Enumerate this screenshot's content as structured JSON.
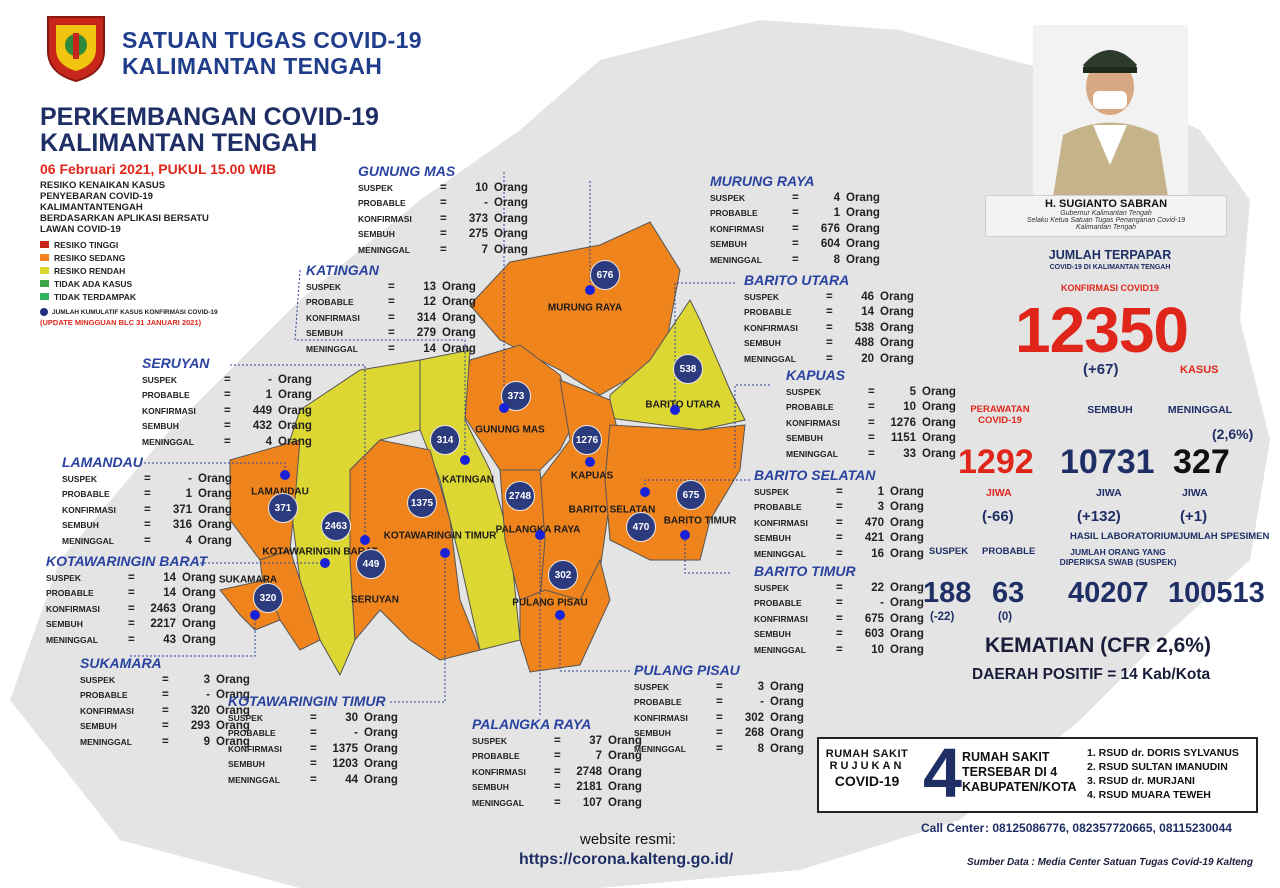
{
  "header": {
    "org_line1": "SATUAN TUGAS COVID-19",
    "org_line2": "KALIMANTAN TENGAH",
    "title_line1": "PERKEMBANGAN COVID-19",
    "title_line2": "KALIMANTAN TENGAH",
    "date": "06 Februari 2021, PUKUL 15.00 WIB"
  },
  "risk_legend": {
    "title": "RESIKO KENAIKAN KASUS PENYEBARAN COVID-19 KALIMANTANTENGAH BERDASARKAN APLIKASI BERSATU LAWAN COVID-19",
    "items": [
      {
        "label": "RESIKO TINGGI",
        "color": "#c8261b"
      },
      {
        "label": "RESIKO SEDANG",
        "color": "#f5821f"
      },
      {
        "label": "RESIKO RENDAH",
        "color": "#d8d62a"
      },
      {
        "label": "TIDAK ADA KASUS",
        "color": "#3aa646"
      },
      {
        "label": "TIDAK TERDAMPAK",
        "color": "#2fb35a"
      }
    ],
    "dot_label": "JUMLAH KUMULATIF KASUS KONFIRMASI COVID-19",
    "update_note": "(UPDATE MINGGUAN BLC 31 JANUARI 2021)"
  },
  "stat_labels": {
    "suspek": "SUSPEK",
    "probable": "PROBABLE",
    "konfirmasi": "KONFIRMASI",
    "sembuh": "SEMBUH",
    "meninggal": "MENINGGAL",
    "unit": "Orang",
    "eq": "="
  },
  "regions": [
    {
      "id": "gunung-mas",
      "name": "GUNUNG MAS",
      "suspek": "10",
      "probable": "-",
      "konfirmasi": "373",
      "sembuh": "275",
      "meninggal": "7"
    },
    {
      "id": "murung-raya",
      "name": "MURUNG RAYA",
      "suspek": "4",
      "probable": "1",
      "konfirmasi": "676",
      "sembuh": "604",
      "meninggal": "8"
    },
    {
      "id": "katingan",
      "name": "KATINGAN",
      "suspek": "13",
      "probable": "12",
      "konfirmasi": "314",
      "sembuh": "279",
      "meninggal": "14"
    },
    {
      "id": "barito-utara",
      "name": "BARITO UTARA",
      "suspek": "46",
      "probable": "14",
      "konfirmasi": "538",
      "sembuh": "488",
      "meninggal": "20"
    },
    {
      "id": "seruyan",
      "name": "SERUYAN",
      "suspek": "-",
      "probable": "1",
      "konfirmasi": "449",
      "sembuh": "432",
      "meninggal": "4"
    },
    {
      "id": "kapuas",
      "name": "KAPUAS",
      "suspek": "5",
      "probable": "10",
      "konfirmasi": "1276",
      "sembuh": "1151",
      "meninggal": "33"
    },
    {
      "id": "lamandau",
      "name": "LAMANDAU",
      "suspek": "-",
      "probable": "1",
      "konfirmasi": "371",
      "sembuh": "316",
      "meninggal": "4"
    },
    {
      "id": "barito-selatan",
      "name": "BARITO SELATAN",
      "suspek": "1",
      "probable": "3",
      "konfirmasi": "470",
      "sembuh": "421",
      "meninggal": "16"
    },
    {
      "id": "kotawaringin-barat",
      "name": "KOTAWARINGIN BARAT",
      "suspek": "14",
      "probable": "14",
      "konfirmasi": "2463",
      "sembuh": "2217",
      "meninggal": "43"
    },
    {
      "id": "barito-timur",
      "name": "BARITO TIMUR",
      "suspek": "22",
      "probable": "-",
      "konfirmasi": "675",
      "sembuh": "603",
      "meninggal": "10"
    },
    {
      "id": "sukamara",
      "name": "SUKAMARA",
      "suspek": "3",
      "probable": "-",
      "konfirmasi": "320",
      "sembuh": "293",
      "meninggal": "9"
    },
    {
      "id": "pulang-pisau",
      "name": "PULANG PISAU",
      "suspek": "3",
      "probable": "-",
      "konfirmasi": "302",
      "sembuh": "268",
      "meninggal": "8"
    },
    {
      "id": "kotawaringin-timur",
      "name": "KOTAWARINGIN TIMUR",
      "suspek": "30",
      "probable": "-",
      "konfirmasi": "1375",
      "sembuh": "1203",
      "meninggal": "44"
    },
    {
      "id": "palangka-raya",
      "name": "PALANGKA RAYA",
      "suspek": "37",
      "probable": "7",
      "konfirmasi": "2748",
      "sembuh": "2181",
      "meninggal": "107"
    }
  ],
  "map": {
    "labels": [
      "MURUNG RAYA",
      "BARITO UTARA",
      "GUNUNG MAS",
      "KATINGAN",
      "KAPUAS",
      "BARITO SELATAN",
      "BARITO TIMUR",
      "PALANGKA RAYA",
      "LAMANDAU",
      "KOTAWARINGIN BARAT",
      "KOTAWARINGIN TIMUR",
      "SUKAMARA",
      "SERUYAN",
      "PULANG PISAU"
    ],
    "badges": [
      "676",
      "538",
      "373",
      "314",
      "1276",
      "2748",
      "470",
      "675",
      "302",
      "371",
      "2463",
      "1375",
      "449",
      "320"
    ]
  },
  "governor": {
    "name": "H. SUGIANTO SABRAN",
    "title1": "Gubernur Kalimantan Tengah",
    "title2": "Selaku Ketua Satuan Tugas Penanganan Covid-19",
    "title3": "Kalimantan Tengah"
  },
  "summary": {
    "heading": "JUMLAH TERPAPAR",
    "subheading": "COVID-19 DI KALIMANTAN TENGAH",
    "konfirmasi_label": "KONFIRMASI COVID19",
    "konfirmasi": "12350",
    "konfirmasi_change": "(+67)",
    "kasus": "KASUS",
    "perawatan_label": "PERAWATAN COVID-19",
    "sembuh_label": "SEMBUH",
    "meninggal_label": "MENINGGAL",
    "meninggal_pct": "(2,6%)",
    "perawatan": "1292",
    "sembuh": "10731",
    "meninggal": "327",
    "jiwa": "JIWA",
    "perawatan_change": "(-66)",
    "sembuh_change": "(+132)",
    "meninggal_change": "(+1)",
    "lab_label": "HASIL LABORATORIUM",
    "spesimen_label": "JUMLAH SPESIMEN",
    "suspek_label": "SUSPEK",
    "probable_label": "PROBABLE",
    "swab_label": "JUMLAH ORANG YANG DIPERIKSA SWAB (SUSPEK)",
    "suspek": "188",
    "probable": "63",
    "swab": "40207",
    "spesimen": "100513",
    "suspek_change": "(-22)",
    "probable_change": "(0)",
    "kematian": "KEMATIAN (CFR 2,6%)",
    "daerah": "DAERAH POSITIF = 14 Kab/Kota"
  },
  "hospital": {
    "box_l1": "RUMAH SAKIT",
    "box_l2": "RUJUKAN",
    "box_l3": "COVID-19",
    "big": "4",
    "mid_l1": "RUMAH SAKIT",
    "mid_l2": "TERSEBAR DI 4",
    "mid_l3": "KABUPATEN/KOTA",
    "list": [
      "1. RSUD dr. DORIS SYLVANUS",
      "2. RSUD SULTAN IMANUDIN",
      "3. RSUD dr. MURJANI",
      "4. RSUD MUARA TEWEH"
    ]
  },
  "footer": {
    "call_center_label": "Call Center",
    "call_center": ": 08125086776, 082357720665, 08115230044",
    "website_label": "website resmi:",
    "website": "https://corona.kalteng.go.id/",
    "source": "Sumber Data : Media Center Satuan Tugas Covid-19 Kalteng"
  }
}
